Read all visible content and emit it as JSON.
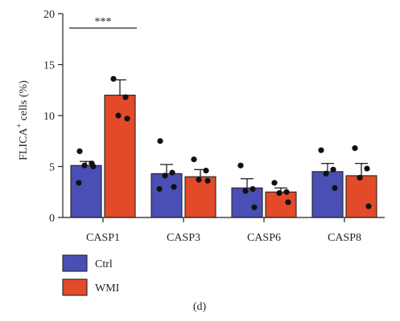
{
  "chart_data": {
    "type": "bar",
    "ylabel_main": "FLICA",
    "ylabel_sup": "+",
    "ylabel_rest": " cells (%)",
    "ylim": [
      0,
      20
    ],
    "yticks": [
      "0",
      "5",
      "10",
      "15",
      "20"
    ],
    "categories": [
      "CASP1",
      "CASP3",
      "CASP6",
      "CASP8"
    ],
    "series": [
      {
        "name": "Ctrl",
        "color": "#4a4fb5",
        "values": [
          5.1,
          4.3,
          2.9,
          4.5
        ],
        "errors": [
          0.4,
          0.9,
          0.9,
          0.8
        ],
        "points": [
          [
            6.5,
            5.3,
            5.1,
            5.0,
            3.4
          ],
          [
            7.5,
            4.4,
            4.1,
            3.0,
            2.8
          ],
          [
            5.1,
            2.8,
            2.6,
            1.0
          ],
          [
            6.6,
            4.7,
            4.3,
            2.9
          ]
        ]
      },
      {
        "name": "WMI",
        "color": "#e24a2a",
        "values": [
          12.0,
          4.0,
          2.5,
          4.1
        ],
        "errors": [
          1.5,
          0.7,
          0.4,
          1.2
        ],
        "points": [
          [
            13.6,
            11.8,
            10.0,
            9.7
          ],
          [
            5.7,
            4.6,
            3.7,
            3.6
          ],
          [
            3.4,
            2.5,
            2.4,
            1.5
          ],
          [
            6.8,
            4.8,
            3.9,
            1.1
          ]
        ]
      }
    ],
    "significance": [
      {
        "category": "CASP1",
        "label": "***"
      }
    ],
    "legend_position": "bottom-left",
    "panel_label": "(d)"
  }
}
